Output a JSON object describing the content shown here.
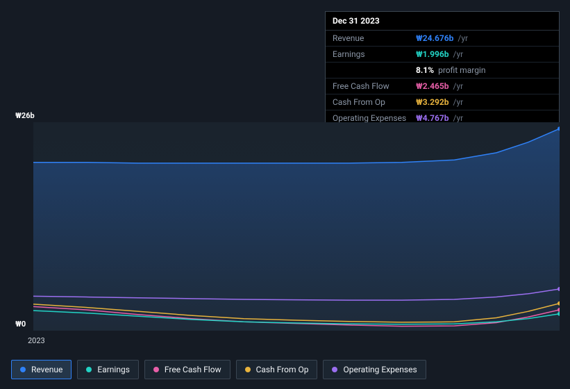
{
  "tooltip": {
    "date": "Dec 31 2023",
    "rows": [
      {
        "label": "Revenue",
        "value": "₩24.676b",
        "unit": "/yr",
        "color": "#2f81f7"
      },
      {
        "label": "Earnings",
        "value": "₩1.996b",
        "unit": "/yr",
        "color": "#22d3c5"
      },
      {
        "label": "_sub",
        "value": "8.1%",
        "sub": "profit margin",
        "color": "#ffffff"
      },
      {
        "label": "Free Cash Flow",
        "value": "₩2.465b",
        "unit": "/yr",
        "color": "#e85fa8"
      },
      {
        "label": "Cash From Op",
        "value": "₩3.292b",
        "unit": "/yr",
        "color": "#e8b33d"
      },
      {
        "label": "Operating Expenses",
        "value": "₩4.767b",
        "unit": "/yr",
        "color": "#9b6ff0"
      }
    ]
  },
  "chart": {
    "type": "area-line",
    "background_color": "#151b24",
    "plot_background": "#1c252f",
    "y_axis": {
      "min": 0,
      "max": 26,
      "top_label": "₩26b",
      "bottom_label": "₩0"
    },
    "x_axis": {
      "labels": [
        "2023"
      ]
    },
    "width_units": 100,
    "series": [
      {
        "name": "Revenue",
        "type": "area",
        "color": "#2f81f7",
        "fill_top": "rgba(47,129,247,0.32)",
        "fill_bottom": "rgba(47,129,247,0.04)",
        "line_width": 1.5,
        "end_marker": true,
        "points": [
          [
            0,
            21.0
          ],
          [
            10,
            21.0
          ],
          [
            20,
            20.9
          ],
          [
            30,
            20.9
          ],
          [
            40,
            20.9
          ],
          [
            50,
            20.9
          ],
          [
            60,
            20.9
          ],
          [
            70,
            21.0
          ],
          [
            80,
            21.3
          ],
          [
            88,
            22.2
          ],
          [
            94,
            23.5
          ],
          [
            100,
            25.2
          ]
        ]
      },
      {
        "name": "Operating Expenses",
        "type": "line",
        "color": "#9b6ff0",
        "line_width": 1.5,
        "end_marker": true,
        "points": [
          [
            0,
            4.3
          ],
          [
            10,
            4.2
          ],
          [
            20,
            4.1
          ],
          [
            30,
            4.0
          ],
          [
            40,
            3.9
          ],
          [
            50,
            3.85
          ],
          [
            60,
            3.8
          ],
          [
            70,
            3.8
          ],
          [
            80,
            3.9
          ],
          [
            88,
            4.2
          ],
          [
            94,
            4.6
          ],
          [
            100,
            5.2
          ]
        ]
      },
      {
        "name": "Free Cash Flow",
        "type": "line",
        "color": "#e85fa8",
        "line_width": 1.5,
        "end_marker": true,
        "points": [
          [
            0,
            3.0
          ],
          [
            10,
            2.6
          ],
          [
            20,
            2.0
          ],
          [
            30,
            1.5
          ],
          [
            40,
            1.1
          ],
          [
            50,
            0.9
          ],
          [
            60,
            0.7
          ],
          [
            70,
            0.55
          ],
          [
            80,
            0.6
          ],
          [
            88,
            1.0
          ],
          [
            94,
            1.7
          ],
          [
            100,
            2.6
          ]
        ]
      },
      {
        "name": "Cash From Op",
        "type": "line",
        "color": "#e8b33d",
        "line_width": 1.5,
        "end_marker": true,
        "points": [
          [
            0,
            3.3
          ],
          [
            10,
            2.9
          ],
          [
            20,
            2.4
          ],
          [
            30,
            1.9
          ],
          [
            40,
            1.5
          ],
          [
            50,
            1.3
          ],
          [
            60,
            1.15
          ],
          [
            70,
            1.05
          ],
          [
            80,
            1.1
          ],
          [
            88,
            1.6
          ],
          [
            94,
            2.4
          ],
          [
            100,
            3.4
          ]
        ]
      },
      {
        "name": "Earnings",
        "type": "line",
        "color": "#22d3c5",
        "line_width": 1.5,
        "end_marker": true,
        "points": [
          [
            0,
            2.5
          ],
          [
            10,
            2.2
          ],
          [
            20,
            1.8
          ],
          [
            30,
            1.4
          ],
          [
            40,
            1.1
          ],
          [
            50,
            0.95
          ],
          [
            60,
            0.85
          ],
          [
            70,
            0.8
          ],
          [
            80,
            0.85
          ],
          [
            88,
            1.1
          ],
          [
            94,
            1.5
          ],
          [
            100,
            2.1
          ]
        ]
      }
    ],
    "end_marker_radius": 3
  },
  "legend": {
    "items": [
      {
        "label": "Revenue",
        "color": "#2f81f7",
        "active": true
      },
      {
        "label": "Earnings",
        "color": "#22d3c5",
        "active": false
      },
      {
        "label": "Free Cash Flow",
        "color": "#e85fa8",
        "active": false
      },
      {
        "label": "Cash From Op",
        "color": "#e8b33d",
        "active": false
      },
      {
        "label": "Operating Expenses",
        "color": "#9b6ff0",
        "active": false
      }
    ]
  }
}
